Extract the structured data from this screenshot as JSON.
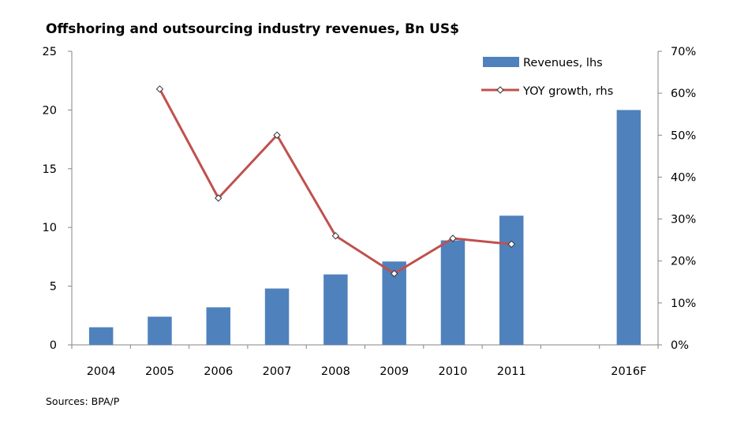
{
  "chart_data": {
    "type": "bar+line",
    "title": "Offshoring and outsourcing industry revenues, Bn US$",
    "categories": [
      "2004",
      "2005",
      "2006",
      "2007",
      "2008",
      "2009",
      "2010",
      "2011",
      "",
      "2016F"
    ],
    "series": [
      {
        "name": "Revenues, lhs",
        "type": "bar",
        "axis": "left",
        "color": "#4F81BD",
        "values": [
          1.5,
          2.4,
          3.2,
          4.8,
          6.0,
          7.1,
          8.9,
          11.0,
          null,
          20.0
        ]
      },
      {
        "name": "YOY growth, rhs",
        "type": "line",
        "axis": "right",
        "color": "#C0504D",
        "marker": "diamond",
        "values": [
          null,
          61,
          35,
          50,
          26,
          17,
          25.4,
          24,
          null,
          null
        ]
      }
    ],
    "left_axis": {
      "range": [
        0,
        25
      ],
      "ticks": [
        "0",
        "5",
        "10",
        "15",
        "20",
        "25"
      ],
      "tick_values": [
        0,
        5,
        10,
        15,
        20,
        25
      ]
    },
    "right_axis": {
      "range": [
        0,
        70
      ],
      "ticks": [
        "0%",
        "10%",
        "20%",
        "30%",
        "40%",
        "50%",
        "60%",
        "70%"
      ],
      "tick_values": [
        0,
        10,
        20,
        30,
        40,
        50,
        60,
        70
      ]
    },
    "grid": false,
    "legend_position": "top-right",
    "source_note": "Sources: BPA/P"
  }
}
